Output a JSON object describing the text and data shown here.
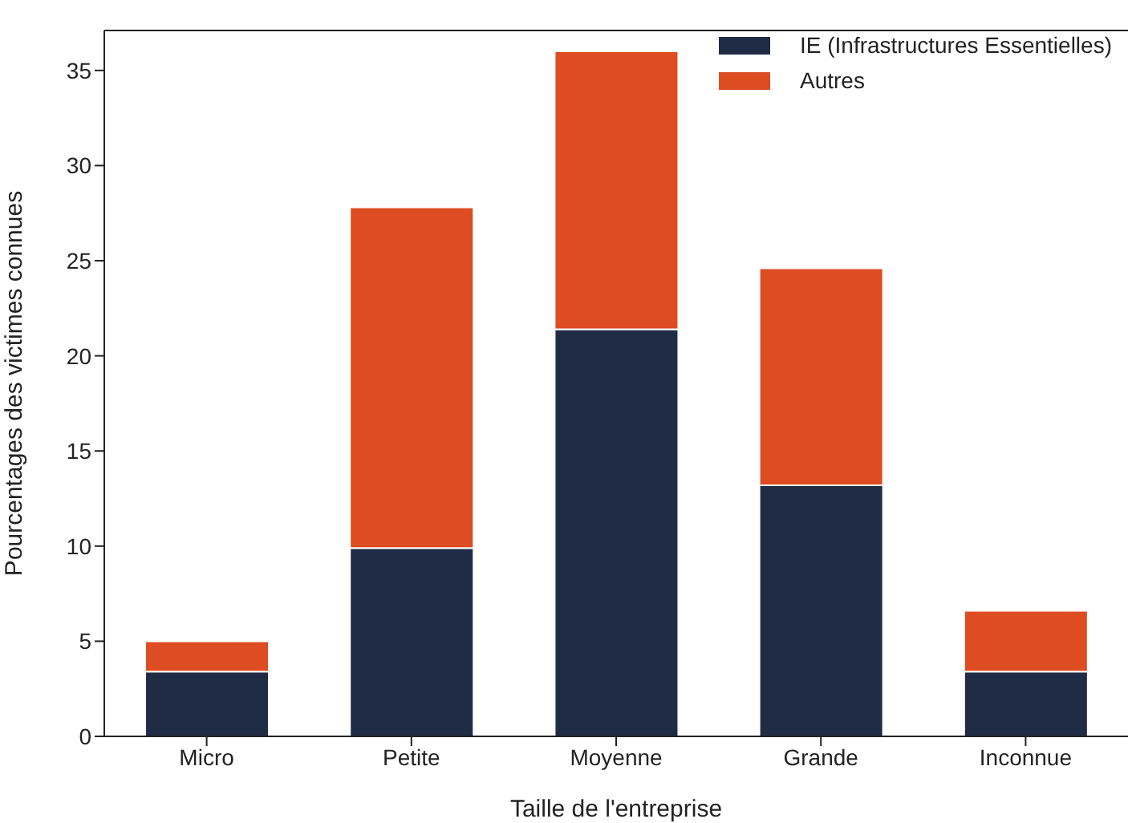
{
  "chart_data": {
    "type": "bar",
    "stacked": true,
    "xlabel": "Taille de l'entreprise",
    "ylabel": "Pourcentages des victimes connues",
    "categories": [
      "Micro",
      "Petite",
      "Moyenne",
      "Grande",
      "Inconnue"
    ],
    "series": [
      {
        "name": "IE (Infrastructures Essentielles)",
        "color": "#202b46",
        "values": [
          3.4,
          9.9,
          21.4,
          13.2,
          3.4
        ]
      },
      {
        "name": "Autres",
        "color": "#de4c21",
        "values": [
          1.6,
          17.9,
          14.6,
          11.4,
          3.2
        ]
      }
    ],
    "ylim": [
      0,
      37.1
    ],
    "yticks": [
      0,
      5,
      10,
      15,
      20,
      25,
      30,
      35
    ],
    "legend": "top right"
  }
}
